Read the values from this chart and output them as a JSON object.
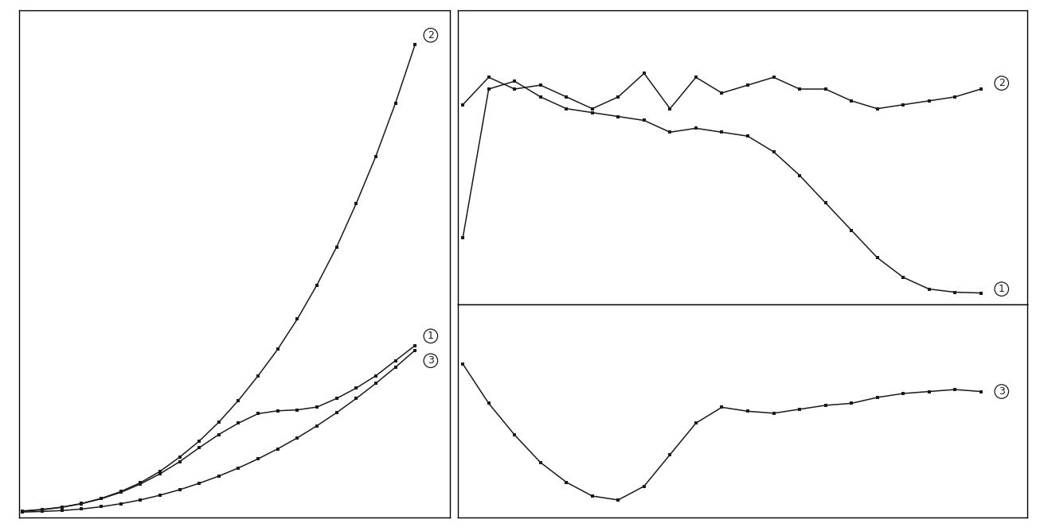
{
  "left_curve2_x": [
    0.0,
    0.05,
    0.1,
    0.15,
    0.2,
    0.25,
    0.3,
    0.35,
    0.4,
    0.45,
    0.5,
    0.55,
    0.6,
    0.65,
    0.7,
    0.75,
    0.8,
    0.85,
    0.9,
    0.95,
    1.0
  ],
  "left_curve2_y": [
    0.006,
    0.014,
    0.026,
    0.045,
    0.072,
    0.108,
    0.155,
    0.215,
    0.29,
    0.375,
    0.475,
    0.59,
    0.72,
    0.86,
    1.02,
    1.2,
    1.4,
    1.63,
    1.88,
    2.16,
    2.47
  ],
  "left_curve1_x": [
    0.0,
    0.05,
    0.1,
    0.15,
    0.2,
    0.25,
    0.3,
    0.35,
    0.4,
    0.45,
    0.5,
    0.55,
    0.6,
    0.65,
    0.7,
    0.75,
    0.8,
    0.85,
    0.9,
    0.95,
    1.0
  ],
  "left_curve1_y": [
    0.004,
    0.012,
    0.025,
    0.044,
    0.07,
    0.104,
    0.148,
    0.202,
    0.266,
    0.34,
    0.41,
    0.47,
    0.52,
    0.535,
    0.54,
    0.555,
    0.6,
    0.655,
    0.72,
    0.8,
    0.88
  ],
  "left_curve3_x": [
    0.0,
    0.05,
    0.1,
    0.15,
    0.2,
    0.25,
    0.3,
    0.35,
    0.4,
    0.45,
    0.5,
    0.55,
    0.6,
    0.65,
    0.7,
    0.75,
    0.8,
    0.85,
    0.9,
    0.95,
    1.0
  ],
  "left_curve3_y": [
    0.0,
    0.003,
    0.008,
    0.016,
    0.028,
    0.044,
    0.064,
    0.089,
    0.118,
    0.152,
    0.19,
    0.233,
    0.281,
    0.334,
    0.392,
    0.456,
    0.525,
    0.6,
    0.68,
    0.765,
    0.855
  ],
  "right_upper_curve1_x": [
    0.0,
    0.05,
    0.1,
    0.15,
    0.2,
    0.25,
    0.3,
    0.35,
    0.4,
    0.45,
    0.5,
    0.55,
    0.6,
    0.65,
    0.7,
    0.75,
    0.8,
    0.85,
    0.9,
    0.95,
    1.0
  ],
  "right_upper_curve1_y": [
    0.14,
    0.52,
    0.54,
    0.5,
    0.47,
    0.46,
    0.45,
    0.44,
    0.41,
    0.42,
    0.41,
    0.4,
    0.36,
    0.3,
    0.23,
    0.16,
    0.09,
    0.04,
    0.01,
    0.002,
    0.0
  ],
  "right_upper_curve2_x": [
    0.0,
    0.05,
    0.1,
    0.15,
    0.2,
    0.25,
    0.3,
    0.35,
    0.4,
    0.45,
    0.5,
    0.55,
    0.6,
    0.65,
    0.7,
    0.75,
    0.8,
    0.85,
    0.9,
    0.95,
    1.0
  ],
  "right_upper_curve2_y": [
    0.48,
    0.55,
    0.52,
    0.53,
    0.5,
    0.47,
    0.5,
    0.56,
    0.47,
    0.55,
    0.51,
    0.53,
    0.55,
    0.52,
    0.52,
    0.49,
    0.47,
    0.48,
    0.49,
    0.5,
    0.52
  ],
  "right_lower_curve3_x": [
    0.0,
    0.05,
    0.1,
    0.15,
    0.2,
    0.25,
    0.3,
    0.35,
    0.4,
    0.45,
    0.5,
    0.55,
    0.6,
    0.65,
    0.7,
    0.75,
    0.8,
    0.85,
    0.9,
    0.95,
    1.0
  ],
  "right_lower_curve3_y": [
    -0.3,
    -0.5,
    -0.66,
    -0.8,
    -0.9,
    -0.97,
    -0.99,
    -0.92,
    -0.76,
    -0.6,
    -0.52,
    -0.54,
    -0.55,
    -0.53,
    -0.51,
    -0.5,
    -0.47,
    -0.45,
    -0.44,
    -0.43,
    -0.44
  ],
  "line_color": "#1a1a1a",
  "bg_color": "#ffffff",
  "marker": "s",
  "markersize": 3.0,
  "linewidth": 1.1
}
